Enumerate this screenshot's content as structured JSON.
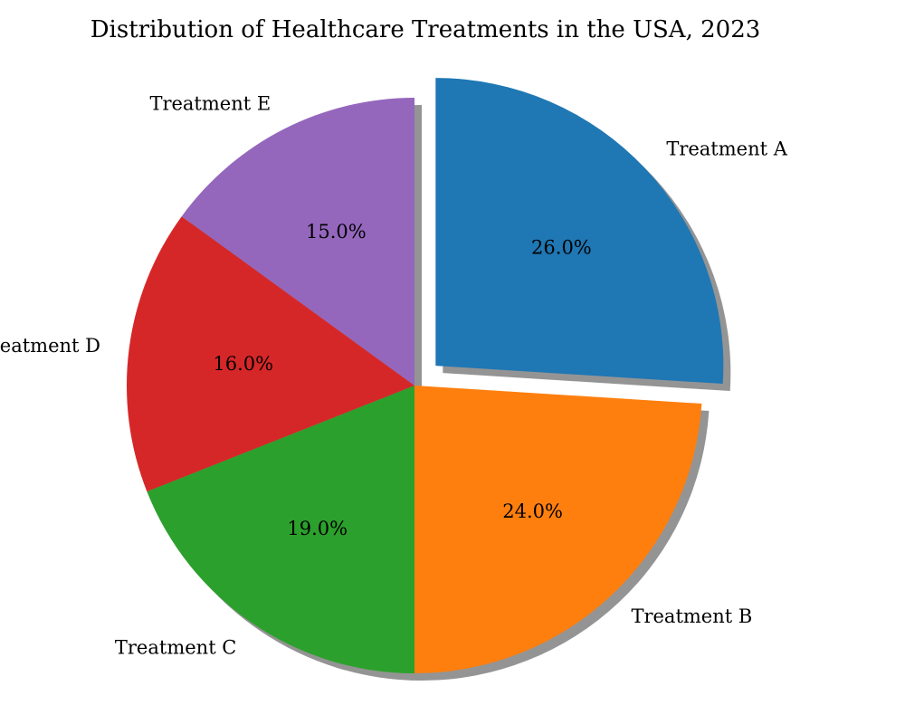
{
  "chart_data": {
    "type": "pie",
    "title": "Distribution of Healthcare Treatments in the USA, 2023",
    "slices": [
      {
        "label": "Treatment A",
        "value": 26.0,
        "pct_label": "26.0%",
        "color": "#1f77b4",
        "exploded": true
      },
      {
        "label": "Treatment B",
        "value": 24.0,
        "pct_label": "24.0%",
        "color": "#ff7f0e",
        "exploded": false
      },
      {
        "label": "Treatment C",
        "value": 19.0,
        "pct_label": "19.0%",
        "color": "#2ca02c",
        "exploded": false
      },
      {
        "label": "Treatment D",
        "value": 16.0,
        "pct_label": "16.0%",
        "color": "#d62728",
        "exploded": false
      },
      {
        "label": "Treatment E",
        "value": 15.0,
        "pct_label": "15.0%",
        "color": "#9467bd",
        "exploded": false
      }
    ],
    "start_angle": "top",
    "direction": "clockwise",
    "shadow": true
  }
}
